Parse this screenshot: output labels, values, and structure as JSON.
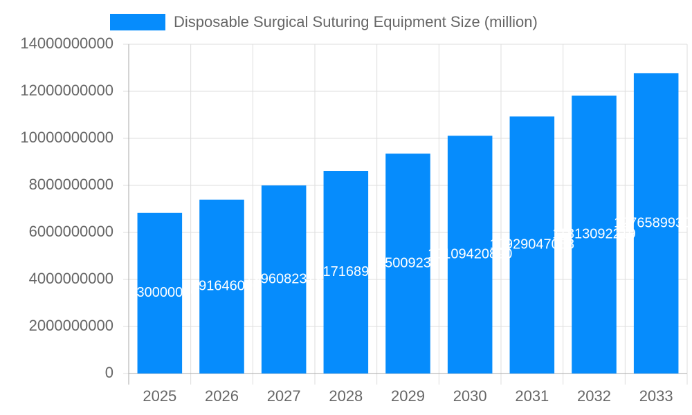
{
  "chart_data": {
    "type": "bar",
    "series": [
      {
        "name": "Disposable Surgical Suturing Equipment Size (million)",
        "color": "#068cfc",
        "values": [
          6830000000,
          7391646000,
          7996082379,
          8617168983,
          9350092355,
          10109420890,
          10929047058,
          11813092219,
          12765899300
        ]
      }
    ],
    "categories": [
      "2025",
      "2026",
      "2027",
      "2028",
      "2029",
      "2030",
      "2031",
      "2032",
      "2033"
    ],
    "ylim": [
      0,
      14000000000
    ],
    "yticks": [
      0,
      2000000000,
      4000000000,
      6000000000,
      8000000000,
      10000000000,
      12000000000,
      14000000000
    ],
    "grid": true
  }
}
